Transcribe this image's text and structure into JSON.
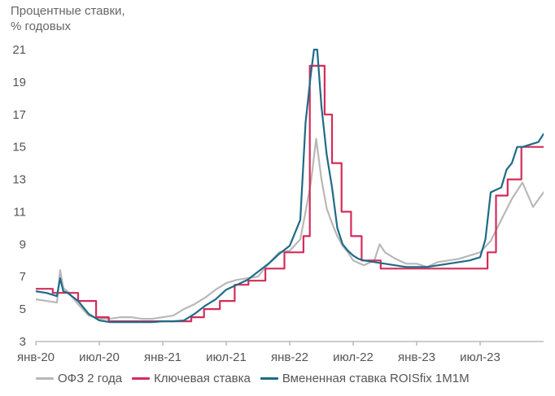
{
  "chart_data": {
    "type": "line",
    "title": "",
    "ylabel": [
      "Процентные ставки,",
      "% годовых"
    ],
    "xlabel": "",
    "ylim": [
      3,
      21
    ],
    "yticks": [
      3,
      5,
      7,
      9,
      11,
      13,
      15,
      17,
      19,
      21
    ],
    "xlim": [
      0,
      48
    ],
    "xtick_positions": [
      0,
      6,
      12,
      18,
      24,
      30,
      36,
      42
    ],
    "xtick_labels": [
      "янв-20",
      "июл-20",
      "янв-21",
      "июл-21",
      "янв-22",
      "июл-22",
      "янв-23",
      "июл-23"
    ],
    "x_unit": "months since янв-20",
    "grid": false,
    "legend_position": "bottom",
    "series": [
      {
        "name": "ОФЗ 2 года",
        "color": "#b8b8b8",
        "points": [
          [
            0,
            5.6
          ],
          [
            1,
            5.5
          ],
          [
            2,
            5.4
          ],
          [
            2.3,
            7.4
          ],
          [
            2.6,
            6.3
          ],
          [
            3,
            6.1
          ],
          [
            4,
            5.3
          ],
          [
            5,
            4.6
          ],
          [
            6,
            4.4
          ],
          [
            7,
            4.4
          ],
          [
            8,
            4.5
          ],
          [
            9,
            4.5
          ],
          [
            10,
            4.4
          ],
          [
            11,
            4.4
          ],
          [
            12,
            4.5
          ],
          [
            13,
            4.6
          ],
          [
            14,
            5.0
          ],
          [
            15,
            5.3
          ],
          [
            16,
            5.7
          ],
          [
            17,
            6.2
          ],
          [
            18,
            6.6
          ],
          [
            19,
            6.8
          ],
          [
            20,
            6.9
          ],
          [
            21,
            7.0
          ],
          [
            22,
            7.8
          ],
          [
            23,
            8.5
          ],
          [
            24,
            8.6
          ],
          [
            25,
            9.3
          ],
          [
            25.5,
            11.0
          ],
          [
            26,
            12.8
          ],
          [
            26.5,
            15.5
          ],
          [
            27,
            13.0
          ],
          [
            27.5,
            11.2
          ],
          [
            28,
            10.3
          ],
          [
            28.5,
            9.5
          ],
          [
            29,
            8.9
          ],
          [
            29.5,
            8.5
          ],
          [
            30,
            8.0
          ],
          [
            31,
            7.7
          ],
          [
            32,
            8.0
          ],
          [
            32.5,
            9.0
          ],
          [
            33,
            8.5
          ],
          [
            34,
            8.1
          ],
          [
            35,
            7.8
          ],
          [
            36,
            7.8
          ],
          [
            37,
            7.6
          ],
          [
            38,
            7.9
          ],
          [
            39,
            8.0
          ],
          [
            40,
            8.1
          ],
          [
            41,
            8.3
          ],
          [
            42,
            8.5
          ],
          [
            43,
            9.2
          ],
          [
            44,
            10.5
          ],
          [
            45,
            11.8
          ],
          [
            46,
            12.8
          ],
          [
            47,
            11.3
          ],
          [
            48,
            12.2
          ]
        ]
      },
      {
        "name": "Ключевая ставка",
        "color": "#d42c5a",
        "step": true,
        "points": [
          [
            0,
            6.25
          ],
          [
            1.6,
            6.0
          ],
          [
            4.0,
            5.5
          ],
          [
            5.7,
            4.5
          ],
          [
            6.9,
            4.25
          ],
          [
            14.7,
            4.5
          ],
          [
            15.9,
            5.0
          ],
          [
            17.4,
            5.5
          ],
          [
            18.8,
            6.5
          ],
          [
            20.1,
            6.75
          ],
          [
            21.7,
            7.5
          ],
          [
            23.5,
            8.5
          ],
          [
            25.3,
            9.5
          ],
          [
            25.9,
            20.0
          ],
          [
            27.3,
            17.0
          ],
          [
            28.0,
            14.0
          ],
          [
            28.9,
            11.0
          ],
          [
            29.8,
            9.5
          ],
          [
            30.8,
            8.0
          ],
          [
            32.6,
            7.5
          ],
          [
            42.7,
            8.5
          ],
          [
            43.5,
            12.0
          ],
          [
            44.6,
            13.0
          ],
          [
            45.9,
            15.0
          ],
          [
            48,
            15.0
          ]
        ]
      },
      {
        "name": "Вмененная ставка ROISfix 1M1M",
        "color": "#1f6b86",
        "points": [
          [
            0,
            6.1
          ],
          [
            1,
            6.0
          ],
          [
            2,
            5.8
          ],
          [
            2.3,
            6.9
          ],
          [
            2.6,
            6.1
          ],
          [
            3,
            6.0
          ],
          [
            4,
            5.5
          ],
          [
            5,
            4.7
          ],
          [
            6,
            4.3
          ],
          [
            7,
            4.2
          ],
          [
            8,
            4.2
          ],
          [
            9,
            4.2
          ],
          [
            10,
            4.2
          ],
          [
            11,
            4.2
          ],
          [
            12,
            4.25
          ],
          [
            13,
            4.25
          ],
          [
            14,
            4.3
          ],
          [
            15,
            4.7
          ],
          [
            16,
            5.2
          ],
          [
            17,
            5.6
          ],
          [
            18,
            6.2
          ],
          [
            19,
            6.5
          ],
          [
            20,
            6.8
          ],
          [
            21,
            7.3
          ],
          [
            22,
            7.8
          ],
          [
            23,
            8.4
          ],
          [
            24,
            8.9
          ],
          [
            25,
            10.5
          ],
          [
            25.5,
            16.5
          ],
          [
            26,
            19.5
          ],
          [
            26.3,
            21.0
          ],
          [
            26.6,
            21.0
          ],
          [
            27,
            17.5
          ],
          [
            27.5,
            14.5
          ],
          [
            28,
            12.5
          ],
          [
            28.5,
            10.0
          ],
          [
            29,
            9.0
          ],
          [
            29.5,
            8.6
          ],
          [
            30,
            8.3
          ],
          [
            30.5,
            8.1
          ],
          [
            31,
            8.0
          ],
          [
            32,
            7.9
          ],
          [
            33,
            7.8
          ],
          [
            34,
            7.7
          ],
          [
            35,
            7.6
          ],
          [
            36,
            7.6
          ],
          [
            37,
            7.6
          ],
          [
            38,
            7.7
          ],
          [
            39,
            7.8
          ],
          [
            40,
            7.9
          ],
          [
            41,
            8.0
          ],
          [
            42,
            8.2
          ],
          [
            42.5,
            9.3
          ],
          [
            43,
            12.2
          ],
          [
            44,
            12.5
          ],
          [
            44.5,
            13.6
          ],
          [
            45,
            14.0
          ],
          [
            45.5,
            15.0
          ],
          [
            46,
            15.0
          ],
          [
            47,
            15.2
          ],
          [
            47.5,
            15.3
          ],
          [
            48,
            15.8
          ]
        ]
      }
    ]
  }
}
